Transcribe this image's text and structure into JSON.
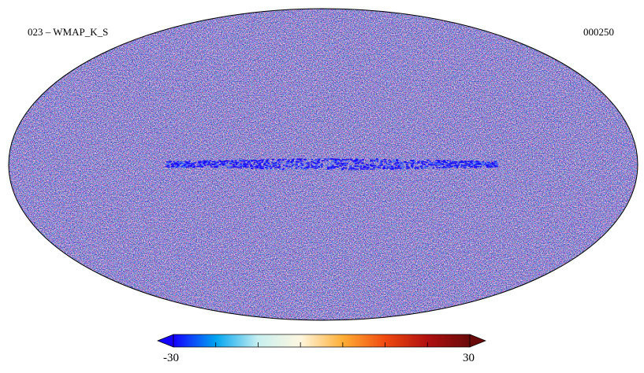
{
  "map": {
    "title": "023 – WMAP_K_S",
    "id": "000250",
    "projection": "mollweide",
    "colormap": "planck-diverging"
  },
  "colorbar": {
    "min": "-30",
    "max": "30",
    "stops": [
      "#1600ff",
      "#00a4f0",
      "#c8f0f0",
      "#fff7e0",
      "#ffae35",
      "#f04a10",
      "#b01010",
      "#6a0a0a"
    ]
  }
}
